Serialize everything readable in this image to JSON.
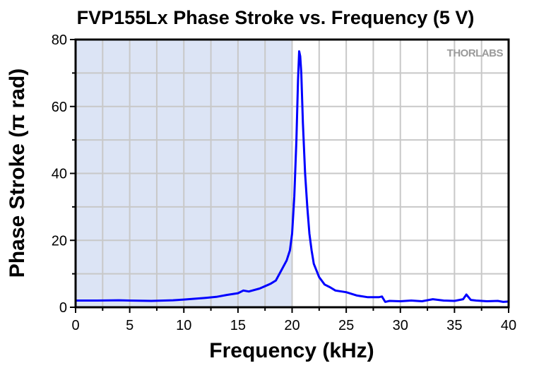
{
  "chart_data": {
    "type": "line",
    "title": "FVP155Lx Phase Stroke vs. Frequency (5 V)",
    "xlabel": "Frequency (kHz)",
    "ylabel": "Phase Stroke (π rad)",
    "xlim": [
      0,
      40
    ],
    "ylim": [
      0,
      80
    ],
    "xticks": [
      0,
      5,
      10,
      15,
      20,
      25,
      30,
      35,
      40
    ],
    "yticks": [
      0,
      20,
      40,
      60,
      80
    ],
    "grid": true,
    "shaded_region": {
      "x": [
        0,
        20
      ],
      "color": "#dce4f5"
    },
    "logo": "THORLABS",
    "series": [
      {
        "name": "Phase Stroke",
        "color": "#0000ff",
        "x": [
          0,
          2,
          4,
          5,
          7,
          9,
          10,
          12,
          13,
          14,
          15,
          15.5,
          16,
          17,
          18,
          18.5,
          19,
          19.5,
          19.8,
          20,
          20.2,
          20.4,
          20.55,
          20.65,
          20.75,
          20.85,
          21,
          21.2,
          21.4,
          21.6,
          21.8,
          22,
          22.5,
          23,
          23.5,
          24,
          25,
          26,
          27,
          28,
          28.3,
          28.6,
          29,
          30,
          31,
          32,
          33,
          34,
          35,
          35.8,
          36.1,
          36.5,
          37,
          38,
          39,
          39.5,
          40
        ],
        "y": [
          2.0,
          2.0,
          2.1,
          2.0,
          1.9,
          2.1,
          2.3,
          2.8,
          3.1,
          3.7,
          4.2,
          5.0,
          4.7,
          5.6,
          7.0,
          8.0,
          11,
          14,
          17,
          22,
          33,
          50,
          68,
          76.5,
          75,
          70,
          55,
          40,
          30,
          22,
          17,
          13,
          9,
          6.8,
          6,
          5,
          4.5,
          3.5,
          3,
          3.0,
          3.2,
          1.6,
          1.9,
          1.8,
          2.0,
          1.8,
          2.4,
          2.0,
          1.9,
          2.4,
          3.8,
          2.2,
          2.0,
          1.8,
          1.9,
          1.6,
          1.7
        ]
      }
    ]
  }
}
